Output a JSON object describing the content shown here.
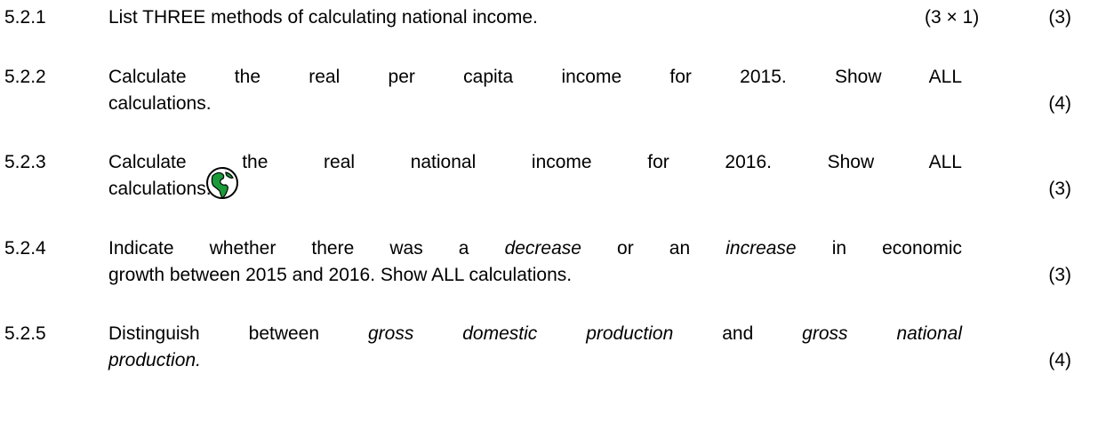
{
  "items": [
    {
      "number": "5.2.1",
      "lines": [
        [
          {
            "text": "List THREE methods of calculating national income."
          }
        ]
      ],
      "note": "(3 × 1)",
      "marks": "(3)"
    },
    {
      "number": "5.2.2",
      "lines": [
        [
          {
            "text": "Calculate the real per capita income for 2015. Show ALL"
          }
        ],
        [
          {
            "text": "calculations."
          }
        ]
      ],
      "marks": "(4)"
    },
    {
      "number": "5.2.3",
      "lines": [
        [
          {
            "text": "Calculate the real national income for 2016. Show ALL"
          }
        ],
        [
          {
            "text": "calculations."
          }
        ]
      ],
      "marks": "(3)"
    },
    {
      "number": "5.2.4",
      "lines": [
        [
          {
            "text": "Indicate whether there was a "
          },
          {
            "text": "decrease",
            "italic": true
          },
          {
            "text": " or an "
          },
          {
            "text": "increase",
            "italic": true
          },
          {
            "text": " in economic"
          }
        ],
        [
          {
            "text": "growth between 2015 and 2016. Show ALL calculations."
          }
        ]
      ],
      "marks": "(3)"
    },
    {
      "number": "5.2.5",
      "lines": [
        [
          {
            "text": "Distinguish between "
          },
          {
            "text": "gross domestic production",
            "italic": true
          },
          {
            "text": " and "
          },
          {
            "text": "gross national",
            "italic": true
          }
        ],
        [
          {
            "text": "production.",
            "italic": true
          }
        ]
      ],
      "marks": "(4)"
    }
  ]
}
